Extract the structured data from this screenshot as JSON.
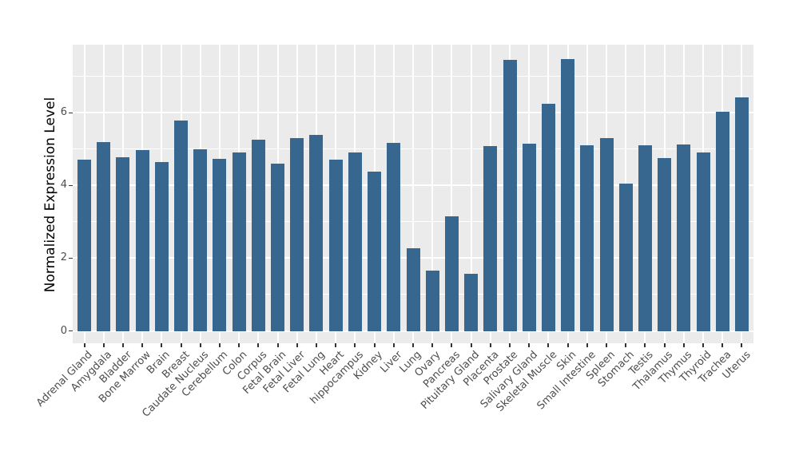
{
  "chart_data": {
    "type": "bar",
    "title": "",
    "xlabel": "",
    "ylabel": "Normalized Expression Level",
    "categories": [
      "Adrenal Gland",
      "Amygdala",
      "Bladder",
      "Bone Marrow",
      "Brain",
      "Breast",
      "Caudate Nucleus",
      "Cerebellum",
      "Colon",
      "Corpus",
      "Fetal Brain",
      "Fetal Liver",
      "Fetal Lung",
      "Heart",
      "hippocampus",
      "Kidney",
      "Liver",
      "Lung",
      "Ovary",
      "Pancreas",
      "Pituitary Gland",
      "Placenta",
      "Prostate",
      "Salivary Gland",
      "Skeletal Muscle",
      "Skin",
      "Small Intestine",
      "Spleen",
      "Stomach",
      "Testis",
      "Thalamus",
      "Thymus",
      "Thyroid",
      "Trachea",
      "Uterus"
    ],
    "values": [
      4.7,
      5.2,
      4.78,
      4.97,
      4.65,
      5.78,
      5.0,
      4.73,
      4.9,
      5.25,
      4.6,
      5.3,
      5.38,
      4.7,
      4.91,
      4.37,
      5.18,
      2.27,
      1.65,
      3.15,
      1.58,
      5.08,
      7.45,
      5.15,
      6.24,
      7.47,
      5.11,
      5.31,
      4.05,
      5.1,
      4.76,
      5.12,
      4.9,
      6.02,
      6.42
    ],
    "ylim": [
      0,
      7.9
    ],
    "yticks": [
      0,
      2,
      4,
      6
    ],
    "ytick_labels": [
      "0",
      "2",
      "4",
      "6"
    ],
    "minor_gridlines": [
      1,
      3,
      5,
      7
    ],
    "grid": "on",
    "legend": "none",
    "x_label_angle_deg": 45,
    "bar_color": "#37678F",
    "panel_background": "#EBEBEB",
    "gridline_color": "#FFFFFF",
    "tick_color": "#333333",
    "axis_text_color": "#4D4D4D",
    "axis_title_color": "#000000"
  }
}
